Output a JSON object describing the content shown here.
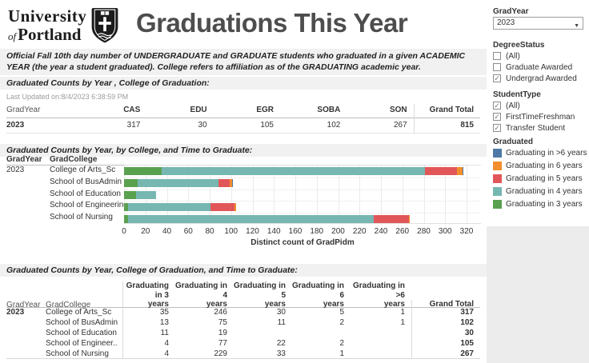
{
  "header": {
    "logo_line1": "University",
    "logo_of": "of",
    "logo_line2": "Portland",
    "title": "Graduations This Year"
  },
  "subtitle": "Official Fall 10th day number of UNDERGRADUATE and GRADUATE students who graduated in a given ACADEMIC YEAR (the year a student graduated).  College refers to affiliation as of the GRADUATING academic year.",
  "section_titles": {
    "table1": "Graduated Counts  by Year , College of Graduation:",
    "chart": "Graduated Counts  by Year, by College, and Time to Graduate:",
    "table2": "Graduated Counts  by Year, College of Graduation, and Time to Graduate:"
  },
  "last_updated": "Last Updated on:8/4/2023 6:38:59 PM",
  "table1": {
    "row_header": "GradYear",
    "columns": [
      "CAS",
      "EDU",
      "EGR",
      "SOBA",
      "SON",
      "Grand Total"
    ],
    "rows": [
      {
        "year": "2023",
        "values": [
          "317",
          "30",
          "105",
          "102",
          "267",
          "815"
        ]
      }
    ]
  },
  "chart_data": {
    "type": "bar",
    "orientation": "horizontal",
    "stacked": true,
    "title": "Graduated Counts  by Year, by College, and Time to Graduate:",
    "col_headers": [
      "GradYear",
      "GradCollege"
    ],
    "gradyear": "2023",
    "categories": [
      "College of Arts_Sc",
      "School of BusAdmin",
      "School of Education",
      "School of Engineering",
      "School of Nursing"
    ],
    "series": [
      {
        "name": "Graduating in 3 years",
        "color": "#59a14f",
        "values": [
          35,
          13,
          11,
          4,
          4
        ]
      },
      {
        "name": "Graduating in 4 years",
        "color": "#76b7b2",
        "values": [
          246,
          75,
          19,
          77,
          229
        ]
      },
      {
        "name": "Graduating in 5 years",
        "color": "#e15759",
        "values": [
          30,
          11,
          0,
          22,
          33
        ]
      },
      {
        "name": "Graduating in 6 years",
        "color": "#f28e2b",
        "values": [
          5,
          2,
          0,
          2,
          1
        ]
      },
      {
        "name": "Graduating in >6 years",
        "color": "#4e79a7",
        "values": [
          1,
          1,
          0,
          0,
          0
        ]
      }
    ],
    "xlabel": "Distinct count of GradPidm",
    "xlim": [
      0,
      320
    ],
    "xtick_step": 20,
    "grid": true,
    "legend_position": "right"
  },
  "table2": {
    "col1": "GradYear",
    "col2": "GradCollege",
    "columns": [
      "Graduating in 3 years",
      "Graduating in 4 years",
      "Graduating in 5 years",
      "Graduating in 6 years",
      "Graduating in >6 years",
      "Grand Total"
    ],
    "rows": [
      {
        "year": "2023",
        "college": "College of Arts_Sc",
        "values": [
          "35",
          "246",
          "30",
          "5",
          "1"
        ],
        "total": "317"
      },
      {
        "year": "",
        "college": "School of BusAdmin",
        "values": [
          "13",
          "75",
          "11",
          "2",
          "1"
        ],
        "total": "102"
      },
      {
        "year": "",
        "college": "School of Education",
        "values": [
          "11",
          "19",
          "",
          "",
          ""
        ],
        "total": "30"
      },
      {
        "year": "",
        "college": "School of Engineer..",
        "values": [
          "4",
          "77",
          "22",
          "2",
          ""
        ],
        "total": "105"
      },
      {
        "year": "",
        "college": "School of Nursing",
        "values": [
          "4",
          "229",
          "33",
          "1",
          ""
        ],
        "total": "267"
      }
    ]
  },
  "sidebar": {
    "gradyear_filter": {
      "label": "GradYear",
      "value": "2023"
    },
    "degree_status": {
      "label": "DegreeStatus",
      "options": [
        {
          "label": "(All)",
          "checked": false
        },
        {
          "label": "Graduate Awarded",
          "checked": false
        },
        {
          "label": "Undergrad Awarded",
          "checked": true
        }
      ]
    },
    "student_type": {
      "label": "StudentType",
      "options": [
        {
          "label": "(All)",
          "checked": true
        },
        {
          "label": "FirstTimeFreshman",
          "checked": true
        },
        {
          "label": "Transfer Student",
          "checked": true
        }
      ]
    },
    "legend": {
      "title": "Graduated",
      "items": [
        {
          "label": "Graduating in >6 years",
          "color": "#4e79a7"
        },
        {
          "label": "Graduating in 6 years",
          "color": "#f28e2b"
        },
        {
          "label": "Graduating in 5 years",
          "color": "#e15759"
        },
        {
          "label": "Graduating in 4 years",
          "color": "#76b7b2"
        },
        {
          "label": "Graduating in 3 years",
          "color": "#59a14f"
        }
      ]
    }
  },
  "colors": {
    "strip_bg": "#f1f1f1",
    "sidebar_filler": "#ececec",
    "title_gray": "#4d4d4d"
  }
}
